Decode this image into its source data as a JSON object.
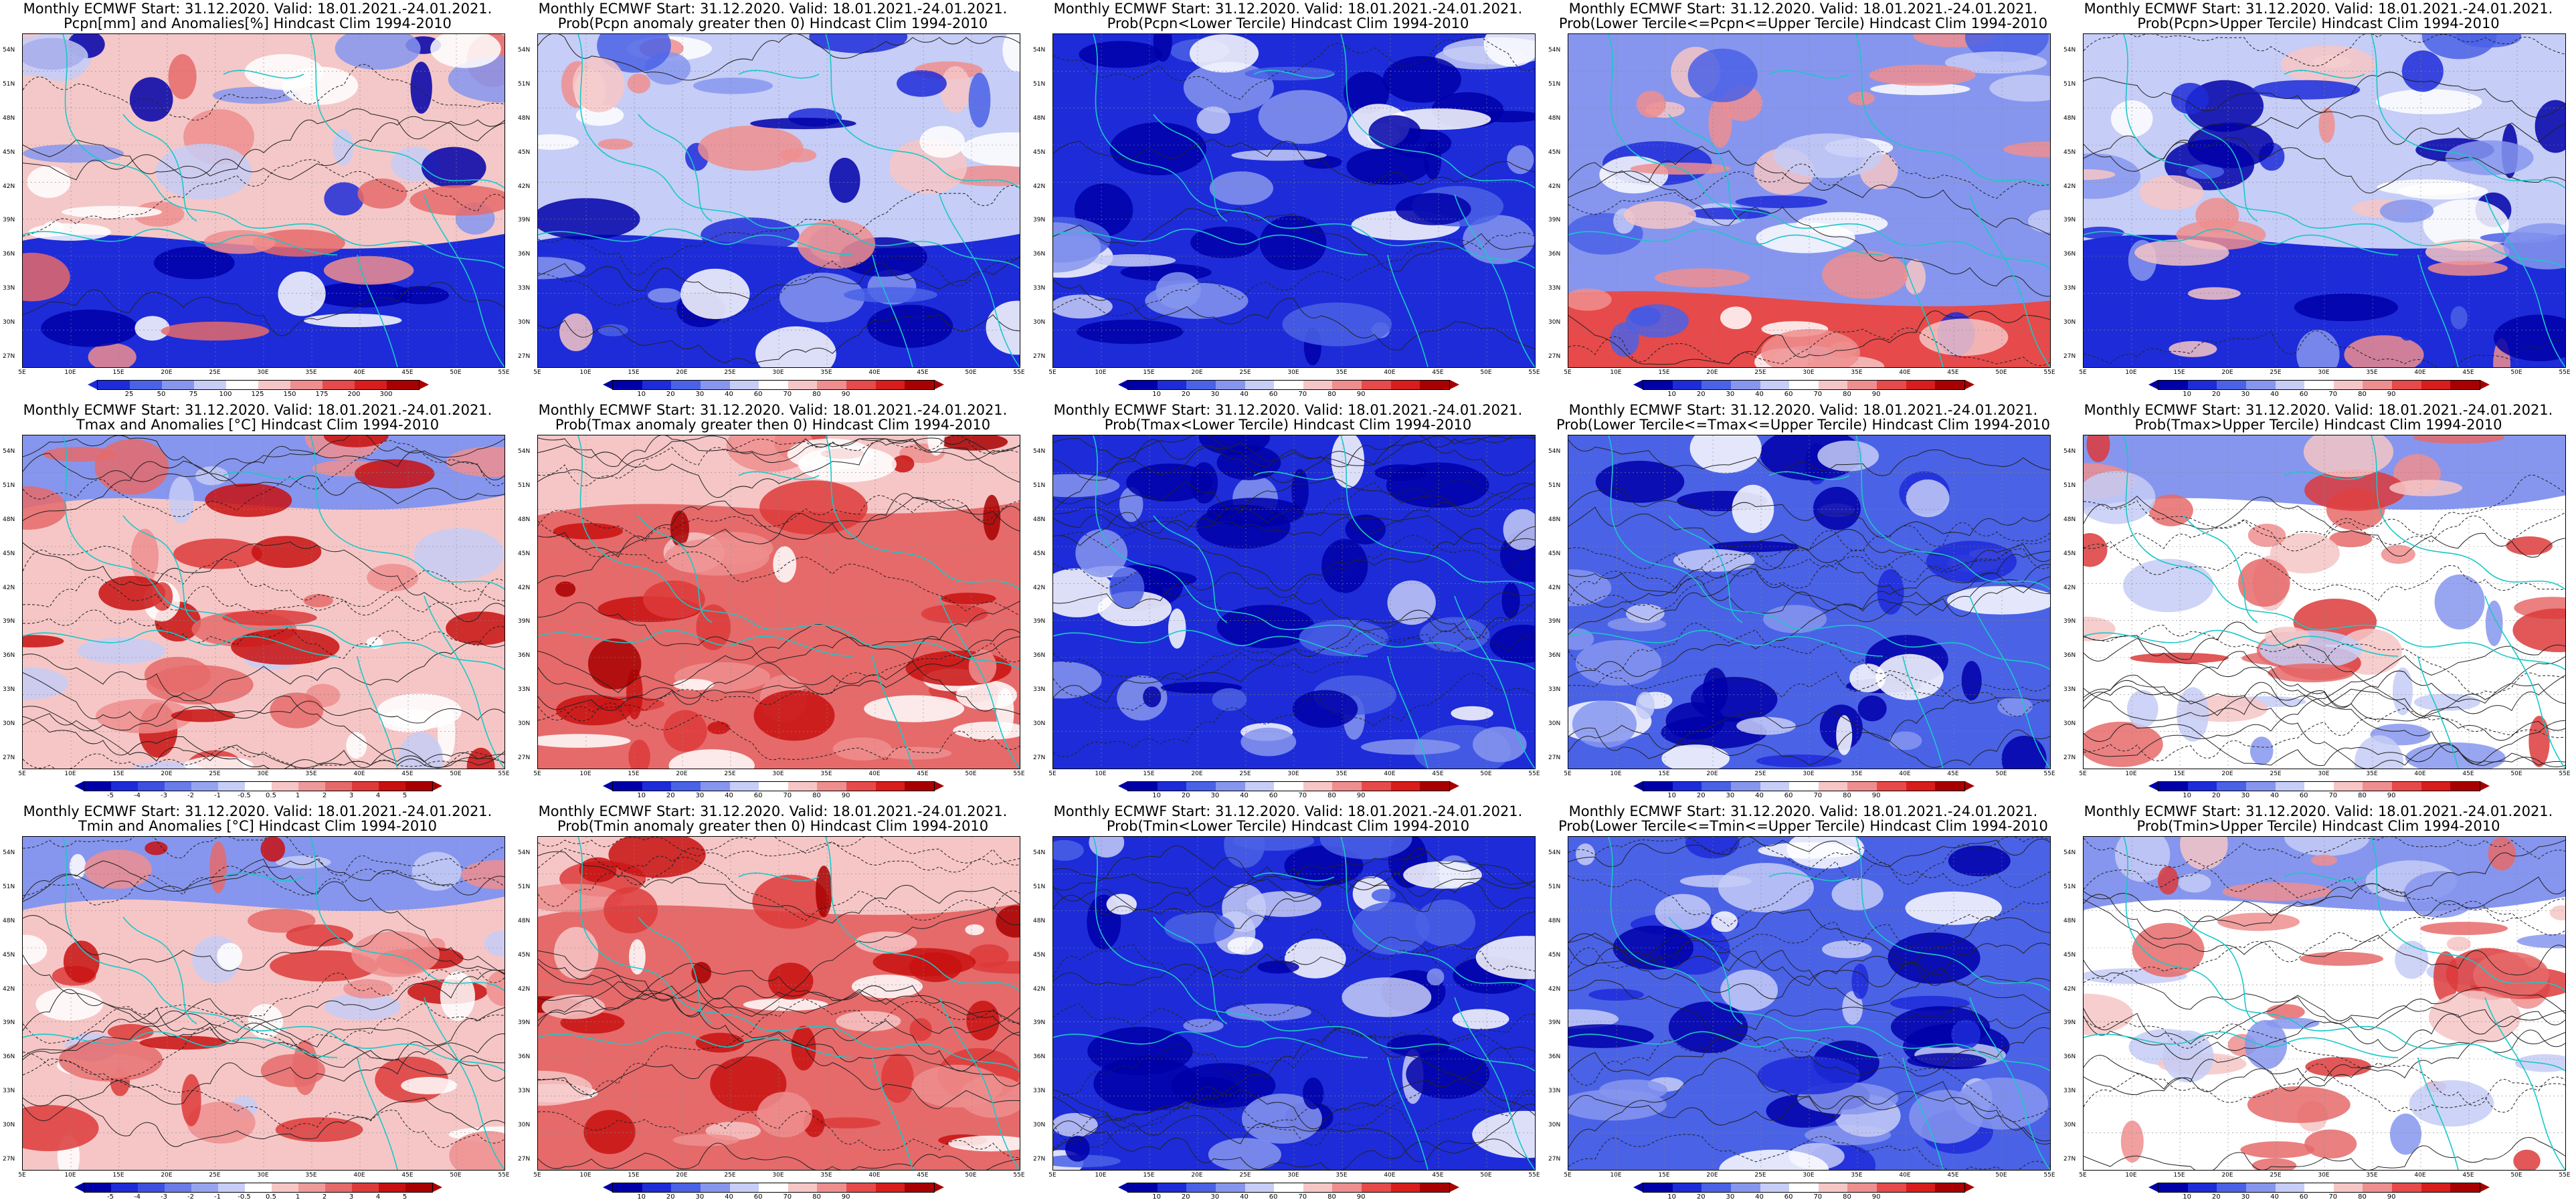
{
  "panels": [
    {
      "title1": "Monthly ECMWF Start: 31.12.2020. Valid: 18.01.2021.-24.01.2021.",
      "title2": "Pcpn[mm] and Anomalies[%] Hindcast Clim 1994-2010",
      "scheme": "anom_pcp",
      "colorbar": [
        "25",
        "50",
        "75",
        "100",
        "125",
        "150",
        "175",
        "200",
        "300"
      ]
    },
    {
      "title1": "Monthly ECMWF Start: 31.12.2020. Valid: 18.01.2021.-24.01.2021.",
      "title2": "Prob(Pcpn anomaly greater then 0) Hindcast Clim 1994-2010",
      "scheme": "prob_mixed",
      "colorbar": [
        "10",
        "20",
        "30",
        "40",
        "60",
        "70",
        "80",
        "90"
      ]
    },
    {
      "title1": "Monthly ECMWF Start: 31.12.2020. Valid: 18.01.2021.-24.01.2021.",
      "title2": "Prob(Pcpn<Lower Tercile) Hindcast Clim 1994-2010",
      "scheme": "prob_blue",
      "colorbar": [
        "10",
        "20",
        "30",
        "40",
        "60",
        "70",
        "80",
        "90"
      ]
    },
    {
      "title1": "Monthly ECMWF Start: 31.12.2020. Valid: 18.01.2021.-24.01.2021.",
      "title2": "Prob(Lower Tercile<=Pcpn<=Upper Tercile) Hindcast Clim 1994-2010",
      "scheme": "prob_blue_light",
      "colorbar": [
        "10",
        "20",
        "30",
        "40",
        "60",
        "70",
        "80",
        "90"
      ]
    },
    {
      "title1": "Monthly ECMWF Start: 31.12.2020. Valid: 18.01.2021.-24.01.2021.",
      "title2": "Prob(Pcpn>Upper Tercile) Hindcast Clim 1994-2010",
      "scheme": "prob_mixed",
      "colorbar": [
        "10",
        "20",
        "30",
        "40",
        "60",
        "70",
        "80",
        "90"
      ]
    },
    {
      "title1": "Monthly ECMWF Start: 31.12.2020. Valid: 18.01.2021.-24.01.2021.",
      "title2": "Tmax and Anomalies [°C] Hindcast Clim 1994-2010",
      "scheme": "warm",
      "colorbar": [
        "-5",
        "-4",
        "-3",
        "-2",
        "-1",
        "-0.5",
        "0.5",
        "1",
        "2",
        "3",
        "4",
        "5"
      ]
    },
    {
      "title1": "Monthly ECMWF Start: 31.12.2020. Valid: 18.01.2021.-24.01.2021.",
      "title2": "Prob(Tmax anomaly greater then 0) Hindcast Clim 1994-2010",
      "scheme": "hot",
      "colorbar": [
        "10",
        "20",
        "30",
        "40",
        "60",
        "70",
        "80",
        "90"
      ]
    },
    {
      "title1": "Monthly ECMWF Start: 31.12.2020. Valid: 18.01.2021.-24.01.2021.",
      "title2": "Prob(Tmax<Lower Tercile) Hindcast Clim 1994-2010",
      "scheme": "prob_blue",
      "colorbar": [
        "10",
        "20",
        "30",
        "40",
        "60",
        "70",
        "80",
        "90"
      ]
    },
    {
      "title1": "Monthly ECMWF Start: 31.12.2020. Valid: 18.01.2021.-24.01.2021.",
      "title2": "Prob(Lower Tercile<=Tmax<=Upper Tercile) Hindcast Clim 1994-2010",
      "scheme": "prob_blue_mid",
      "colorbar": [
        "10",
        "20",
        "30",
        "40",
        "60",
        "70",
        "80",
        "90"
      ]
    },
    {
      "title1": "Monthly ECMWF Start: 31.12.2020. Valid: 18.01.2021.-24.01.2021.",
      "title2": "Prob(Tmax>Upper Tercile) Hindcast Clim 1994-2010",
      "scheme": "warm_light",
      "colorbar": [
        "10",
        "20",
        "30",
        "40",
        "60",
        "70",
        "80",
        "90"
      ]
    },
    {
      "title1": "Monthly ECMWF Start: 31.12.2020. Valid: 18.01.2021.-24.01.2021.",
      "title2": "Tmin and Anomalies [°C] Hindcast Clim 1994-2010",
      "scheme": "warm",
      "colorbar": [
        "-5",
        "-4",
        "-3",
        "-2",
        "-1",
        "-0.5",
        "0.5",
        "1",
        "2",
        "3",
        "4",
        "5"
      ]
    },
    {
      "title1": "Monthly ECMWF Start: 31.12.2020. Valid: 18.01.2021.-24.01.2021.",
      "title2": "Prob(Tmin anomaly greater then 0) Hindcast Clim 1994-2010",
      "scheme": "hot",
      "colorbar": [
        "10",
        "20",
        "30",
        "40",
        "60",
        "70",
        "80",
        "90"
      ]
    },
    {
      "title1": "Monthly ECMWF Start: 31.12.2020. Valid: 18.01.2021.-24.01.2021.",
      "title2": "Prob(Tmin<Lower Tercile) Hindcast Clim 1994-2010",
      "scheme": "prob_blue",
      "colorbar": [
        "10",
        "20",
        "30",
        "40",
        "60",
        "70",
        "80",
        "90"
      ]
    },
    {
      "title1": "Monthly ECMWF Start: 31.12.2020. Valid: 18.01.2021.-24.01.2021.",
      "title2": "Prob(Lower Tercile<=Tmin<=Upper Tercile) Hindcast Clim 1994-2010",
      "scheme": "prob_blue_mid",
      "colorbar": [
        "10",
        "20",
        "30",
        "40",
        "60",
        "70",
        "80",
        "90"
      ]
    },
    {
      "title1": "Monthly ECMWF Start: 31.12.2020. Valid: 18.01.2021.-24.01.2021.",
      "title2": "Prob(Tmin>Upper Tercile) Hindcast Clim 1994-2010",
      "scheme": "warm_light",
      "colorbar": [
        "10",
        "20",
        "30",
        "40",
        "60",
        "70",
        "80",
        "90"
      ]
    }
  ],
  "lat_labels": [
    "54N",
    "51N",
    "48N",
    "45N",
    "42N",
    "39N",
    "36N",
    "33N",
    "30N",
    "27N"
  ],
  "lon_labels": [
    "5E",
    "10E",
    "15E",
    "20E",
    "25E",
    "30E",
    "35E",
    "40E",
    "45E",
    "50E",
    "55E"
  ],
  "colors": {
    "prob_scale": [
      "#0000a8",
      "#1d2cd8",
      "#4a62e6",
      "#8696ee",
      "#c6cdf6",
      "#ffffff",
      "#f6c6c6",
      "#ee8e8e",
      "#e64a4a",
      "#d81d1d",
      "#a80000"
    ],
    "anom_scale": [
      "#0000a8",
      "#1d2cd8",
      "#3e50e0",
      "#6a7ce8",
      "#96a4f0",
      "#c6cdf6",
      "#ffffff",
      "#f6c6c6",
      "#ee9a9a",
      "#e66a6a",
      "#dd3a3a",
      "#c81010",
      "#a80000"
    ],
    "coast": "#19c8c8",
    "contour": "#222222"
  }
}
